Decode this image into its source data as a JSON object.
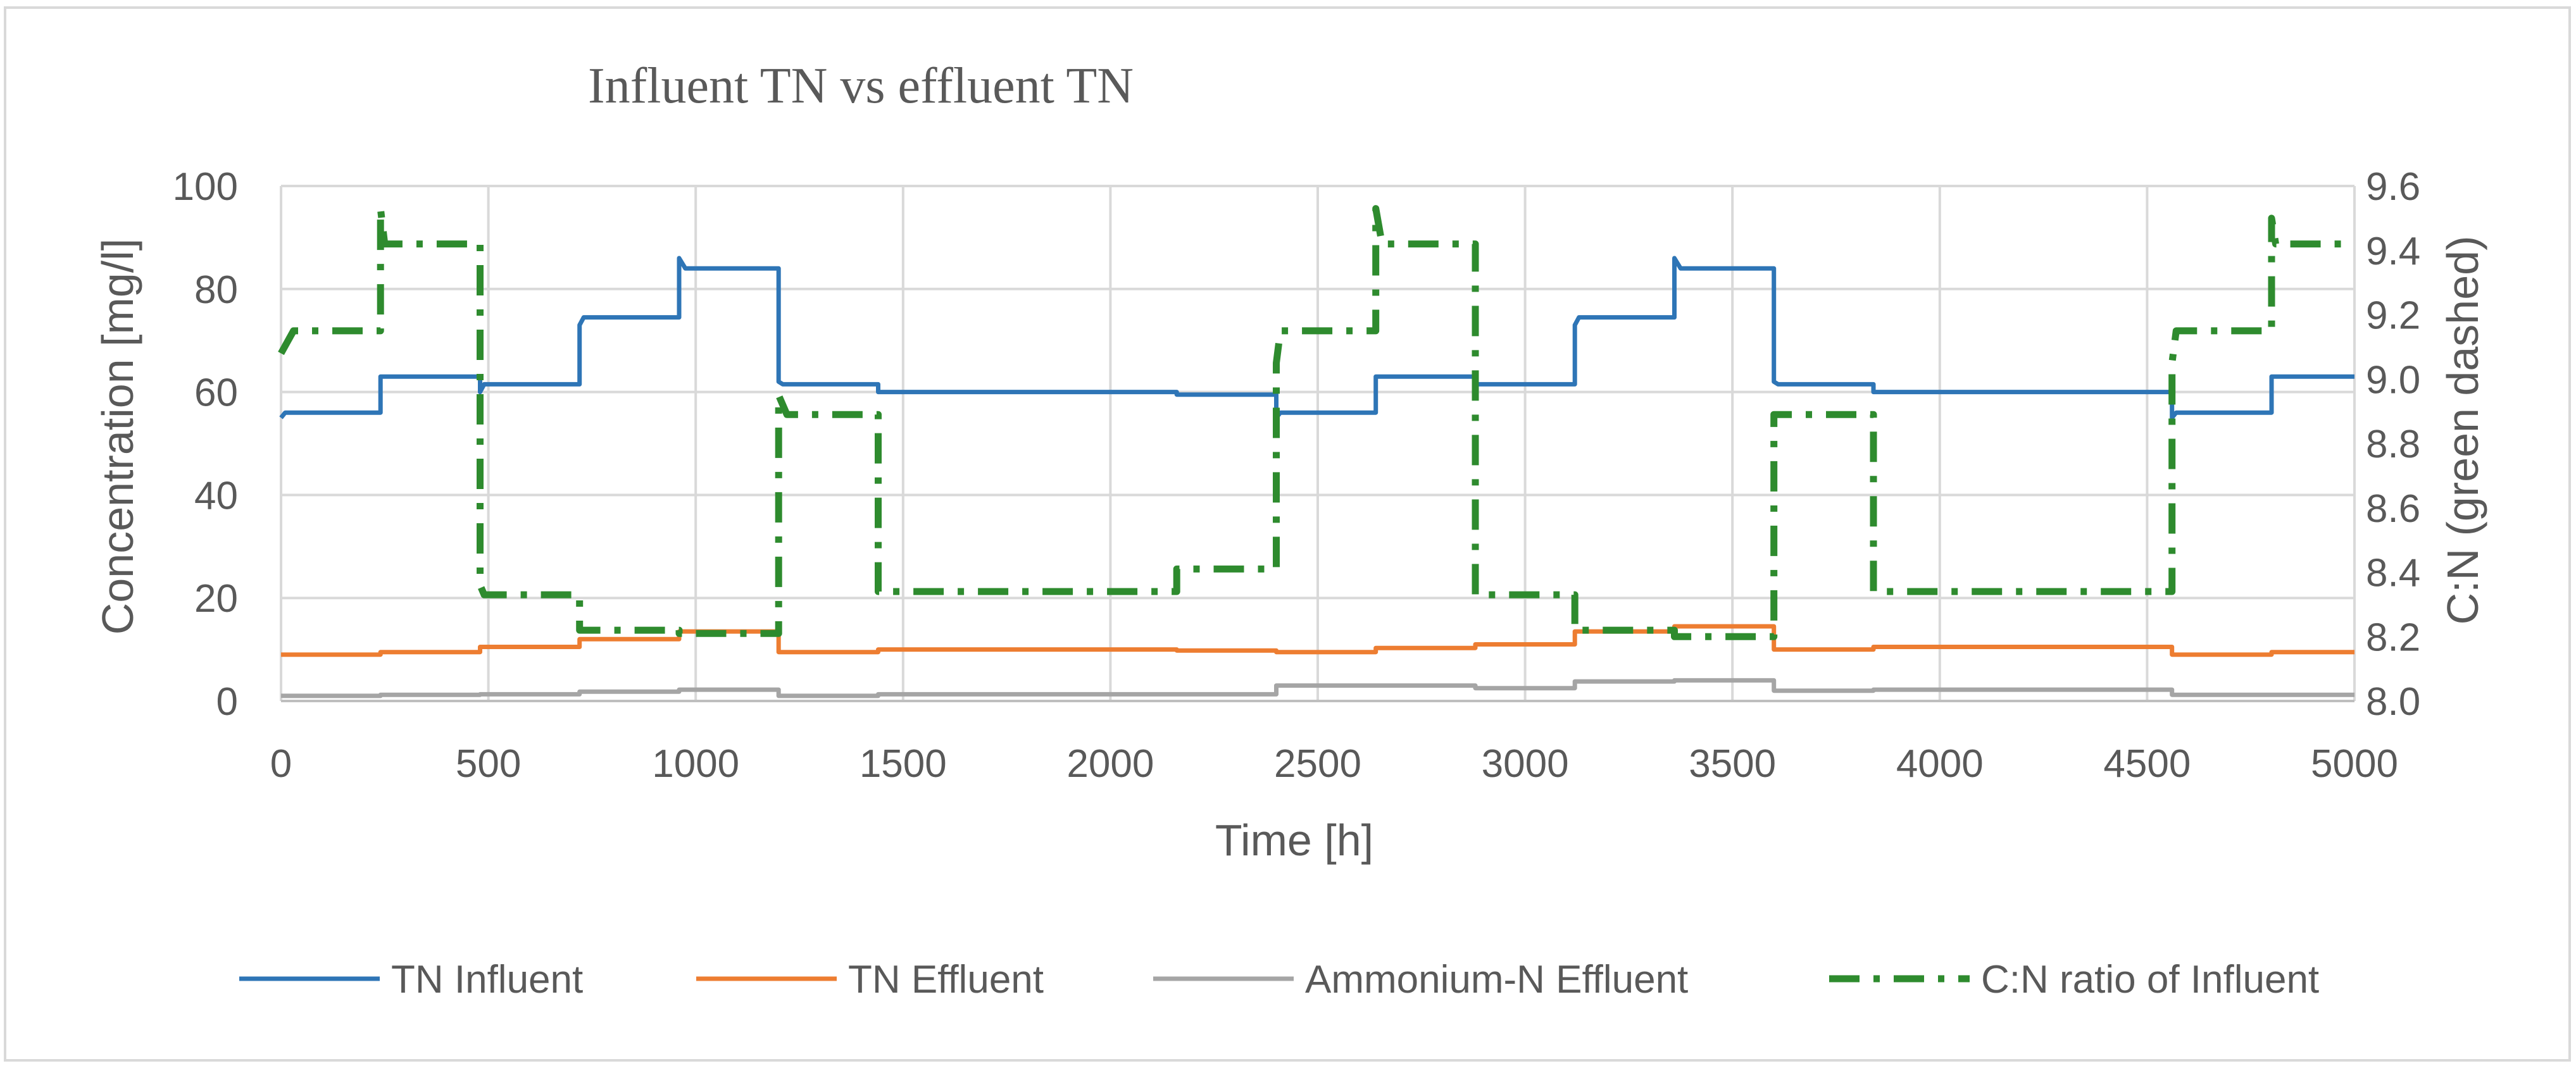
{
  "chart_data": {
    "type": "line",
    "title": "Influent TN vs effluent TN",
    "xlabel": "Time [h]",
    "ylabel": "Concentration [mg/l]",
    "y2label": "C:N (green dashed)",
    "xlim": [
      0,
      5000
    ],
    "ylim": [
      0,
      100
    ],
    "y2lim": [
      8.0,
      9.6
    ],
    "x_ticks": [
      "0",
      "500",
      "1000",
      "1500",
      "2000",
      "2500",
      "3000",
      "3500",
      "4000",
      "4500",
      "5000"
    ],
    "y_ticks": [
      "0",
      "20",
      "40",
      "60",
      "80",
      "100"
    ],
    "y2_ticks": [
      "8.0",
      "8.2",
      "8.4",
      "8.6",
      "8.8",
      "9.0",
      "9.2",
      "9.4",
      "9.6"
    ],
    "grid": true,
    "legend_position": "bottom",
    "series": [
      {
        "name": "TN Influent",
        "axis": "left",
        "style": "solid",
        "color": "#2e75b6",
        "x": [
          0,
          10,
          10,
          240,
          240,
          480,
          480,
          490,
          490,
          720,
          720,
          730,
          730,
          960,
          960,
          975,
          975,
          1200,
          1200,
          1210,
          1210,
          1440,
          1440,
          2160,
          2160,
          2400,
          2400,
          2410,
          2410,
          2640,
          2640,
          2880,
          2880,
          3120,
          3120,
          3130,
          3130,
          3360,
          3360,
          3375,
          3375,
          3600,
          3600,
          3610,
          3610,
          3840,
          3840,
          4560,
          4560,
          4570,
          4570,
          4800,
          4800,
          5000
        ],
        "y": [
          55,
          56,
          56,
          56,
          63,
          63,
          60,
          61.5,
          61.5,
          61.5,
          73,
          74.5,
          74.5,
          74.5,
          86,
          84,
          84,
          84,
          62,
          61.5,
          61.5,
          61.5,
          60,
          60,
          59.5,
          59.5,
          55,
          56,
          56,
          56,
          63,
          63,
          61.5,
          61.5,
          73,
          74.5,
          74.5,
          74.5,
          86,
          84,
          84,
          84,
          62,
          61.5,
          61.5,
          61.5,
          60,
          60,
          55,
          56,
          56,
          56,
          63,
          63
        ]
      },
      {
        "name": "TN Effluent",
        "axis": "left",
        "style": "solid",
        "color": "#ed7d31",
        "x": [
          0,
          240,
          240,
          480,
          480,
          720,
          720,
          960,
          960,
          1200,
          1200,
          1440,
          1440,
          2160,
          2160,
          2400,
          2400,
          2640,
          2640,
          2880,
          2880,
          3120,
          3120,
          3360,
          3360,
          3600,
          3600,
          3840,
          3840,
          4560,
          4560,
          4800,
          4800,
          5000
        ],
        "y": [
          9,
          9,
          9.5,
          9.5,
          10.5,
          10.5,
          12,
          12,
          13.5,
          13.5,
          9.5,
          9.5,
          10,
          10,
          9.8,
          9.8,
          9.5,
          9.5,
          10.3,
          10.3,
          11,
          11,
          13.5,
          13.5,
          14.5,
          14.5,
          10,
          10,
          10.5,
          10.5,
          9,
          9,
          9.5,
          9.5
        ]
      },
      {
        "name": "Ammonium-N Effluent",
        "axis": "left",
        "style": "solid",
        "color": "#a5a5a5",
        "x": [
          0,
          240,
          240,
          480,
          480,
          720,
          720,
          960,
          960,
          1200,
          1200,
          1440,
          1440,
          2400,
          2400,
          2640,
          2640,
          2880,
          2880,
          3120,
          3120,
          3360,
          3360,
          3600,
          3600,
          3840,
          3840,
          4560,
          4560,
          5000
        ],
        "y": [
          1,
          1,
          1.2,
          1.2,
          1.3,
          1.3,
          1.8,
          1.8,
          2.2,
          2.2,
          1,
          1,
          1.3,
          1.3,
          3,
          3,
          3,
          3,
          2.5,
          2.5,
          3.8,
          3.8,
          4,
          4,
          2,
          2,
          2.2,
          2.2,
          1.2,
          1.2
        ]
      },
      {
        "name": "C:N ratio of Influent",
        "axis": "right",
        "style": "dashdot",
        "color": "#2e8b2e",
        "x": [
          0,
          30,
          30,
          240,
          240,
          250,
          250,
          480,
          480,
          490,
          490,
          720,
          720,
          960,
          960,
          1200,
          1200,
          1220,
          1220,
          1440,
          1440,
          2160,
          2160,
          2400,
          2400,
          2410,
          2410,
          2640,
          2640,
          2655,
          2655,
          2880,
          2880,
          3120,
          3120,
          3360,
          3360,
          3600,
          3600,
          3840,
          3840,
          4560,
          4560,
          4570,
          4570,
          4800,
          4800,
          4810,
          4810,
          5000
        ],
        "y": [
          9.08,
          9.15,
          9.15,
          9.15,
          9.53,
          9.42,
          9.42,
          9.42,
          8.36,
          8.33,
          8.33,
          8.33,
          8.22,
          8.22,
          8.21,
          8.21,
          8.95,
          8.89,
          8.89,
          8.89,
          8.34,
          8.34,
          8.41,
          8.41,
          9.05,
          9.15,
          9.15,
          9.15,
          9.53,
          9.42,
          9.42,
          9.42,
          8.33,
          8.33,
          8.22,
          8.22,
          8.2,
          8.2,
          8.89,
          8.89,
          8.34,
          8.34,
          9.05,
          9.15,
          9.15,
          9.15,
          9.5,
          9.42,
          9.42,
          9.42
        ]
      }
    ]
  }
}
